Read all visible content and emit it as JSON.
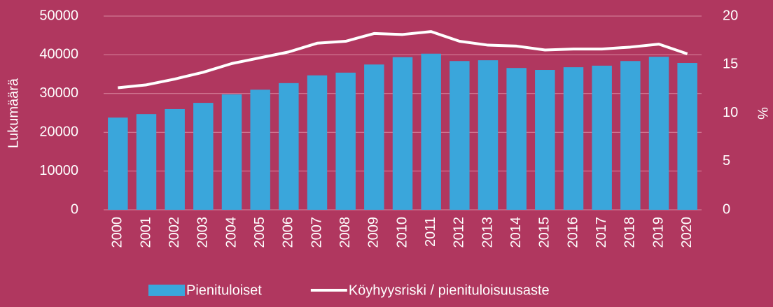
{
  "chart_data": {
    "type": "bar_line",
    "y_label": "Lukumäärä",
    "y2_label": "%",
    "categories": [
      "2000",
      "2001",
      "2002",
      "2003",
      "2004",
      "2005",
      "2006",
      "2007",
      "2008",
      "2009",
      "2010",
      "2011",
      "2012",
      "2013",
      "2014",
      "2015",
      "2016",
      "2017",
      "2018",
      "2019",
      "2020"
    ],
    "series": [
      {
        "name": "Pienituloiset",
        "type": "bar",
        "color": "#3aa6db",
        "values": [
          23800,
          24700,
          26000,
          27600,
          29800,
          31000,
          32700,
          34700,
          35400,
          37500,
          39400,
          40300,
          38400,
          38600,
          36600,
          36100,
          36800,
          37200,
          38400,
          39500,
          37900
        ]
      },
      {
        "name": "Köyhyysriski / pienituloisuusaste",
        "type": "line",
        "axis": "y2",
        "color": "#ffffff",
        "values": [
          12.6,
          12.9,
          13.5,
          14.2,
          15.1,
          15.7,
          16.3,
          17.2,
          17.4,
          18.2,
          18.1,
          18.4,
          17.4,
          17.0,
          16.9,
          16.5,
          16.6,
          16.6,
          16.8,
          17.1,
          16.1
        ]
      }
    ],
    "ylim": [
      0,
      50000
    ],
    "yticks": [
      0,
      10000,
      20000,
      30000,
      40000,
      50000
    ],
    "y2lim": [
      0,
      20
    ],
    "y2ticks": [
      0,
      5,
      10,
      15,
      20
    ],
    "grid": true,
    "legend": "bottom"
  }
}
